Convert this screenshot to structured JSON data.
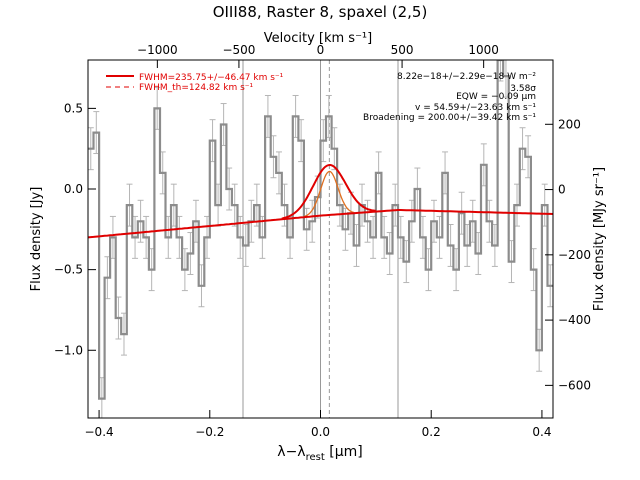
{
  "chart_data": {
    "type": "line",
    "title": "OIII88, Raster 8, spaxel (2,5)",
    "xlabel_main": "λ−λ",
    "xlabel_sub": "rest",
    "xlabel_unit": " [μm]",
    "ylabel_left": "Flux density [Jy]",
    "ylabel_right": "Flux density [MJy sr⁻¹]",
    "top_xlabel": "Velocity [km s⁻¹]",
    "xlim": [
      -0.42,
      0.42
    ],
    "ylim_left": [
      -1.42,
      0.8
    ],
    "ylim_right": [
      -700,
      397
    ],
    "x_ticks": [
      -0.4,
      -0.2,
      0.0,
      0.2,
      0.4
    ],
    "x_tick_labels": [
      "−0.4",
      "−0.2",
      "0.0",
      "0.2",
      "0.4"
    ],
    "y_ticks": [
      0.5,
      0.0,
      -0.5,
      -1.0
    ],
    "y_tick_labels": [
      "0.5",
      "0.0",
      "−0.5",
      "−1.0"
    ],
    "right_ticks": [
      200,
      0,
      -200,
      -400,
      -600
    ],
    "right_tick_labels": [
      "200",
      "0",
      "−200",
      "−400",
      "−600"
    ],
    "top_ticks_velocity": [
      -1000,
      -500,
      0,
      500,
      1000
    ],
    "top_tick_labels": [
      "−1000",
      "−500",
      "0",
      "500",
      "1000"
    ],
    "legend": [
      {
        "label": "FWHM=235.75+/−46.47 km s⁻¹",
        "style": "solid",
        "color": "#e00000"
      },
      {
        "label": "FWHM_th=124.82 km s⁻¹",
        "style": "dashed",
        "color": "#e00000"
      }
    ],
    "annotations": [
      "8.22e−18+/−2.29e−18 W m⁻²",
      "3.58σ",
      "EQW = −0.09 μm",
      "v = 54.59+/−23.63 km s⁻¹",
      "Broadening = 200.00+/−39.42 km s⁻¹"
    ],
    "vertical_lines": [
      -0.14,
      0.0,
      0.14
    ],
    "center_line": 0.016,
    "colors": {
      "data": "#8c8c8c",
      "fit": "#e00000",
      "narrow": "#e07020",
      "guides": "#999999"
    },
    "series": [
      {
        "name": "data",
        "x": [
          -0.415,
          -0.405,
          -0.395,
          -0.385,
          -0.375,
          -0.365,
          -0.355,
          -0.345,
          -0.335,
          -0.325,
          -0.315,
          -0.305,
          -0.295,
          -0.285,
          -0.275,
          -0.265,
          -0.255,
          -0.245,
          -0.235,
          -0.225,
          -0.215,
          -0.205,
          -0.195,
          -0.185,
          -0.175,
          -0.165,
          -0.155,
          -0.145,
          -0.135,
          -0.125,
          -0.115,
          -0.105,
          -0.095,
          -0.085,
          -0.075,
          -0.065,
          -0.055,
          -0.045,
          -0.035,
          -0.025,
          -0.015,
          -0.005,
          0.005,
          0.015,
          0.025,
          0.035,
          0.045,
          0.055,
          0.065,
          0.075,
          0.085,
          0.095,
          0.105,
          0.115,
          0.125,
          0.135,
          0.145,
          0.155,
          0.165,
          0.175,
          0.185,
          0.195,
          0.205,
          0.215,
          0.225,
          0.235,
          0.245,
          0.255,
          0.265,
          0.275,
          0.285,
          0.295,
          0.305,
          0.315,
          0.325,
          0.335,
          0.345,
          0.355,
          0.365,
          0.375,
          0.385,
          0.395,
          0.405,
          0.415
        ],
        "y": [
          0.25,
          0.35,
          -1.3,
          -0.55,
          -0.3,
          -0.8,
          -0.9,
          -0.1,
          -0.3,
          -0.2,
          -0.3,
          -0.5,
          0.5,
          0.1,
          -0.3,
          -0.1,
          -0.3,
          -0.5,
          -0.4,
          -0.2,
          -0.6,
          -0.3,
          0.3,
          -0.1,
          0.4,
          0.0,
          -0.1,
          -0.3,
          -0.35,
          -0.2,
          -0.1,
          -0.3,
          0.45,
          0.2,
          0.1,
          -0.1,
          -0.3,
          0.45,
          0.3,
          -0.25,
          -0.2,
          -0.05,
          0.3,
          0.45,
          0.25,
          -0.1,
          -0.25,
          -0.15,
          -0.35,
          -0.1,
          -0.2,
          -0.3,
          0.1,
          -0.3,
          -0.4,
          -0.1,
          -0.3,
          -0.45,
          -0.2,
          0.0,
          -0.3,
          -0.5,
          -0.2,
          -0.3,
          0.1,
          -0.35,
          -0.5,
          -0.15,
          -0.35,
          -0.2,
          -0.4,
          0.15,
          -0.2,
          -0.35,
          0.8,
          0.7,
          -0.45,
          -0.1,
          0.25,
          0.2,
          -0.5,
          -1.0,
          -0.1,
          -0.6
        ],
        "err": 0.13
      },
      {
        "name": "FWHM=235.75+/−46.47 km s⁻¹",
        "continuum": {
          "x": [
            -0.42,
            0.0,
            0.14,
            0.42
          ],
          "y": [
            -0.3,
            -0.165,
            -0.13,
            -0.155
          ]
        },
        "gaussian": {
          "center": 0.016,
          "amplitude": 0.31,
          "fwhm_um": 0.069
        }
      },
      {
        "name": "FWHM_th=124.82 km s⁻¹",
        "gaussian": {
          "center": 0.016,
          "amplitude": 0.27,
          "fwhm_um": 0.037
        }
      }
    ]
  }
}
